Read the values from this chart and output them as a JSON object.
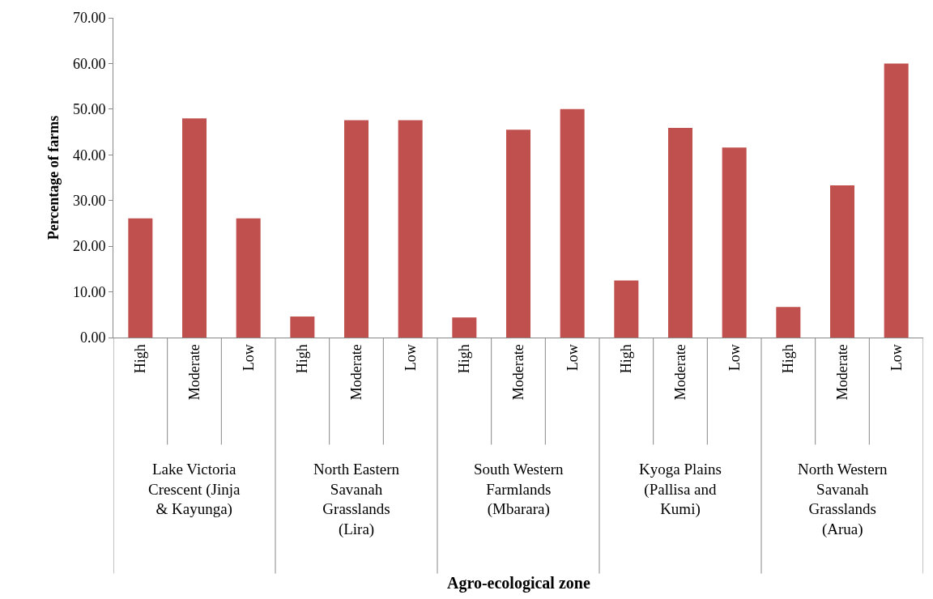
{
  "chart_data": {
    "type": "bar",
    "ylabel": "Percentage of farms",
    "categories": [
      "High",
      "Moderate",
      "Low",
      "High",
      "Moderate",
      "Low",
      "High",
      "Moderate",
      "Low",
      "High",
      "Moderate",
      "Low",
      "High",
      "Moderate",
      "Low"
    ],
    "values": [
      26.1,
      48.0,
      26.1,
      4.6,
      47.6,
      47.6,
      4.4,
      45.5,
      50.0,
      12.5,
      45.9,
      41.6,
      6.7,
      33.3,
      60.0
    ],
    "color": "#c0504d",
    "annotations": [
      "Lake Victoria Crescent (Jinja & Kayunga)",
      "North Eastern Savanah Grasslands (Lira)",
      "South Western Farmlands (Mbarara)",
      "Kyoga Plains (Pallisa and Kumi)",
      "North Western Savanah Grasslands (Arua)",
      "Agro-ecological zone"
    ],
    "ylim": [
      0,
      70
    ],
    "yticks": [
      {
        "value": 0,
        "label": "0.00"
      },
      {
        "value": 10,
        "label": "10.00"
      },
      {
        "value": 20,
        "label": "20.00"
      },
      {
        "value": 30,
        "label": "30.00"
      },
      {
        "value": 40,
        "label": "40.00"
      },
      {
        "value": 50,
        "label": "50.00"
      },
      {
        "value": 60,
        "label": "60.00"
      },
      {
        "value": 70,
        "label": "70.00"
      }
    ],
    "legend": false
  }
}
